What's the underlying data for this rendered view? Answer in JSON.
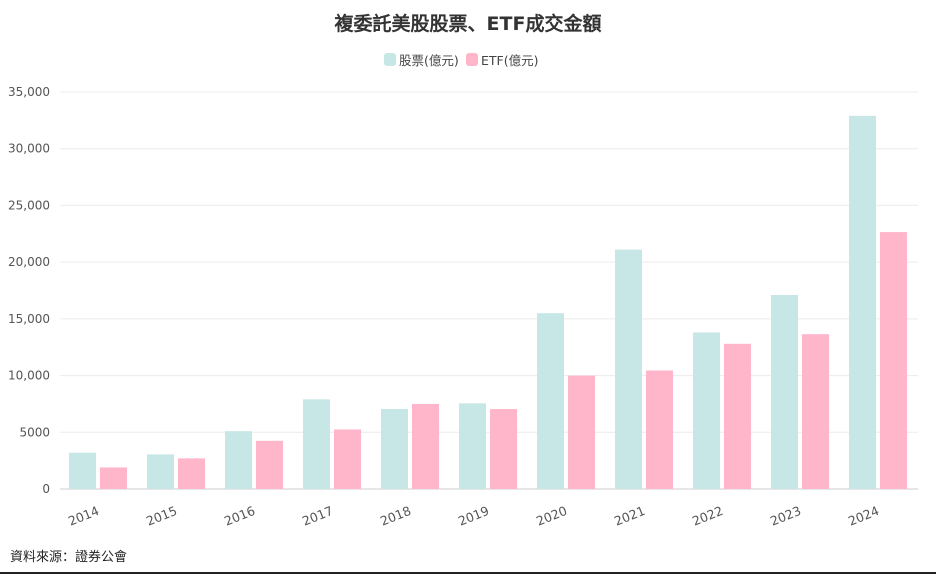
{
  "chart_data": {
    "type": "bar",
    "title": "複委託美股股票、ETF成交金額",
    "categories": [
      "2014",
      "2015",
      "2016",
      "2017",
      "2018",
      "2019",
      "2020",
      "2021",
      "2022",
      "2023",
      "2024"
    ],
    "series": [
      {
        "name": "股票(億元)",
        "color": "#c7e6e6",
        "values": [
          3200,
          3050,
          5100,
          7900,
          7050,
          7550,
          15500,
          21100,
          13800,
          17100,
          32900
        ]
      },
      {
        "name": "ETF(億元)",
        "color": "#ffb6cb",
        "values": [
          1900,
          2700,
          4250,
          5250,
          7500,
          7050,
          10000,
          10450,
          12800,
          13650,
          22650
        ]
      }
    ],
    "yticks": [
      "0",
      "5000",
      "10,000",
      "15,000",
      "20,000",
      "25,000",
      "30,000",
      "35,000"
    ],
    "ylim": [
      0,
      35000
    ],
    "grid": true,
    "legend": "top-center"
  },
  "source": "資料來源：證券公會"
}
